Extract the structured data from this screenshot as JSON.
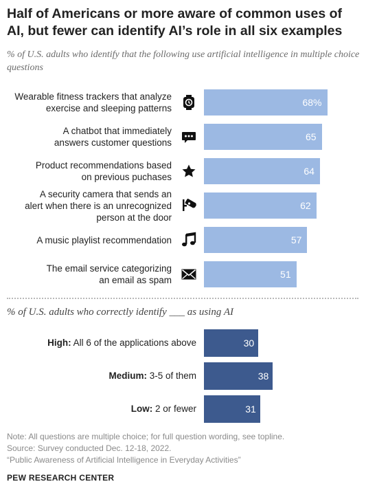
{
  "title": "Half of Americans or more aware of common uses of AI, but fewer can identify AI’s role in all six examples",
  "subtitle": "% of U.S. adults who identify that the following use artificial intelligence in multiple choice questions",
  "section2_title": "% of U.S. adults who correctly identify ___ as using AI",
  "footer": {
    "note": "Note: All questions are multiple choice; for full question wording, see topline.",
    "source": "Source: Survey conducted Dec. 12-18, 2022.",
    "report": "“Public Awareness of Artificial Intelligence in Everyday Activities”",
    "brand": "PEW RESEARCH CENTER"
  },
  "colors": {
    "bar_light": "#9cb9e3",
    "bar_dark": "#3d5a8e",
    "value_text": "#ffffff"
  },
  "chart_data": [
    {
      "type": "bar",
      "orientation": "horizontal",
      "categories": [
        "Wearable fitness trackers that analyze exercise and sleeping patterns",
        "A chatbot that immediately answers customer questions",
        "Product recommendations based on previous puchases",
        "A security camera that sends an alert when there is an unrecognized person at the door",
        "A music playlist recommendation",
        "The email service categorizing an email as spam"
      ],
      "label_lines": [
        [
          "Wearable fitness trackers that analyze",
          "exercise and sleeping patterns"
        ],
        [
          "A chatbot that immediately",
          "answers customer questions"
        ],
        [
          "Product recommendations based",
          "on previous puchases"
        ],
        [
          "A security camera that sends an",
          "alert when there is an unrecognized",
          "person at the door"
        ],
        [
          "A music playlist recommendation"
        ],
        [
          "The email service categorizing",
          "an email as spam"
        ]
      ],
      "icons": [
        "smartwatch-icon",
        "chat-bubble-icon",
        "star-icon",
        "security-camera-icon",
        "music-note-icon",
        "envelope-icon"
      ],
      "values": [
        68,
        65,
        64,
        62,
        57,
        51
      ],
      "value_labels": [
        "68%",
        "65",
        "64",
        "62",
        "57",
        "51"
      ],
      "xlim": [
        0,
        100
      ],
      "grid": false
    },
    {
      "type": "bar",
      "orientation": "horizontal",
      "categories": [
        "High: All 6 of the applications above",
        "Medium: 3-5 of them",
        "Low: 2 or fewer"
      ],
      "label_parts": [
        {
          "bold": "High:",
          "rest": " All 6 of the applications above"
        },
        {
          "bold": "Medium:",
          "rest": " 3-5 of them"
        },
        {
          "bold": "Low:",
          "rest": " 2 or fewer"
        }
      ],
      "values": [
        30,
        38,
        31
      ],
      "value_labels": [
        "30",
        "38",
        "31"
      ],
      "xlim": [
        0,
        100
      ],
      "grid": false
    }
  ]
}
